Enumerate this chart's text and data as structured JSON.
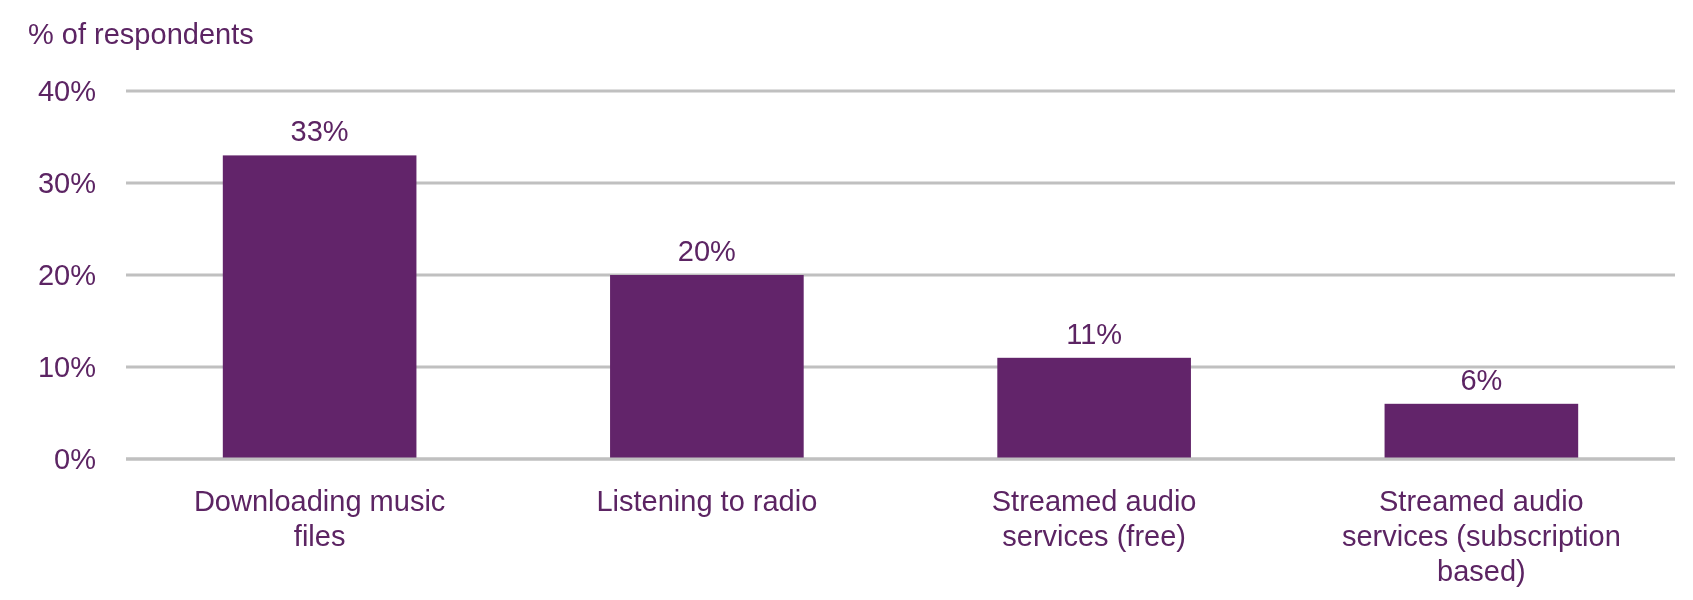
{
  "chart_data": {
    "type": "bar",
    "ylabel": "% of respondents",
    "categories": [
      "Downloading music files",
      "Listening to radio",
      "Streamed audio services (free)",
      "Streamed audio services (subscription based)"
    ],
    "values": [
      33,
      20,
      11,
      6
    ],
    "color": "#62246a",
    "ylim": [
      0,
      40
    ],
    "yticks": [
      {
        "value": 0,
        "label": "0%"
      },
      {
        "value": 10,
        "label": "10%"
      },
      {
        "value": 20,
        "label": "20%"
      },
      {
        "value": 30,
        "label": "30%"
      },
      {
        "value": 40,
        "label": "40%"
      }
    ],
    "grid": "y",
    "value_labels": [
      "33%",
      "20%",
      "11%",
      "6%"
    ]
  }
}
